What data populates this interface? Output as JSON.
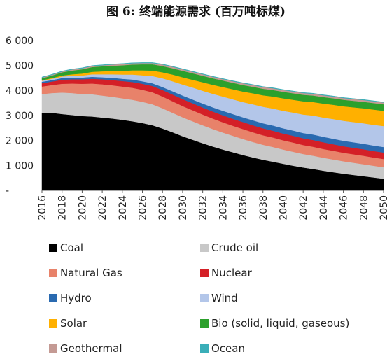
{
  "title": "图 6: 终端能源需求 (百万吨标煤)",
  "chart_data": {
    "type": "area",
    "stacked": true,
    "title": "图 6: 终端能源需求 (百万吨标煤)",
    "x": [
      2016,
      2017,
      2018,
      2019,
      2020,
      2021,
      2022,
      2023,
      2024,
      2025,
      2026,
      2027,
      2028,
      2029,
      2030,
      2031,
      2032,
      2033,
      2034,
      2035,
      2036,
      2037,
      2038,
      2039,
      2040,
      2041,
      2042,
      2043,
      2044,
      2045,
      2046,
      2047,
      2048,
      2049,
      2050
    ],
    "x_tick_labels": [
      "2016",
      "2018",
      "2020",
      "2022",
      "2024",
      "2026",
      "2028",
      "2030",
      "2032",
      "2034",
      "2036",
      "2038",
      "2040",
      "2042",
      "2044",
      "2046",
      "2048",
      "2050"
    ],
    "y_ticks": [
      {
        "value": 0,
        "label": "-"
      },
      {
        "value": 1000,
        "label": "1 000"
      },
      {
        "value": 2000,
        "label": "2 000"
      },
      {
        "value": 3000,
        "label": "3 000"
      },
      {
        "value": 4000,
        "label": "4 000"
      },
      {
        "value": 5000,
        "label": "5 000"
      },
      {
        "value": 6000,
        "label": "6 000"
      }
    ],
    "ylim": [
      0,
      6000
    ],
    "grid": false,
    "legend_position": "bottom",
    "series": [
      {
        "name": "Coal",
        "color": "#000000",
        "values": [
          3100,
          3110,
          3060,
          3020,
          2980,
          2960,
          2920,
          2880,
          2830,
          2770,
          2700,
          2610,
          2480,
          2330,
          2170,
          2030,
          1890,
          1760,
          1640,
          1530,
          1420,
          1320,
          1230,
          1150,
          1070,
          990,
          920,
          860,
          790,
          730,
          670,
          620,
          570,
          520,
          470
        ]
      },
      {
        "name": "Crude oil",
        "color": "#c8c8c8",
        "values": [
          760,
          790,
          860,
          880,
          880,
          890,
          880,
          870,
          860,
          860,
          850,
          840,
          810,
          780,
          760,
          740,
          720,
          700,
          680,
          660,
          640,
          620,
          600,
          590,
          570,
          560,
          540,
          530,
          520,
          510,
          500,
          490,
          480,
          470,
          460
        ]
      },
      {
        "name": "Natural Gas",
        "color": "#e8826a",
        "values": [
          300,
          320,
          350,
          380,
          410,
          430,
          450,
          460,
          470,
          480,
          480,
          480,
          470,
          460,
          450,
          440,
          430,
          420,
          410,
          400,
          400,
          390,
          380,
          380,
          370,
          370,
          360,
          360,
          350,
          350,
          340,
          340,
          340,
          330,
          330
        ]
      },
      {
        "name": "Nuclear",
        "color": "#d42027",
        "values": [
          130,
          140,
          160,
          170,
          180,
          190,
          200,
          210,
          220,
          230,
          240,
          250,
          260,
          270,
          280,
          280,
          280,
          280,
          280,
          280,
          280,
          280,
          280,
          270,
          270,
          270,
          270,
          270,
          270,
          260,
          260,
          260,
          260,
          260,
          260
        ]
      },
      {
        "name": "Hydro",
        "color": "#2a6ab0",
        "values": [
          60,
          60,
          70,
          70,
          70,
          80,
          80,
          90,
          90,
          100,
          100,
          110,
          120,
          130,
          140,
          150,
          160,
          170,
          180,
          190,
          190,
          200,
          200,
          210,
          210,
          210,
          210,
          220,
          220,
          220,
          220,
          220,
          220,
          220,
          220
        ]
      },
      {
        "name": "Wind",
        "color": "#b3c6e9",
        "values": [
          40,
          50,
          60,
          70,
          80,
          100,
          120,
          140,
          170,
          200,
          240,
          290,
          350,
          400,
          440,
          480,
          510,
          540,
          570,
          590,
          610,
          640,
          660,
          680,
          700,
          720,
          740,
          760,
          770,
          790,
          800,
          810,
          820,
          830,
          840
        ]
      },
      {
        "name": "Solar",
        "color": "#ffb000",
        "values": [
          20,
          30,
          40,
          60,
          80,
          100,
          120,
          130,
          150,
          170,
          200,
          220,
          240,
          270,
          290,
          310,
          340,
          360,
          380,
          400,
          420,
          440,
          460,
          480,
          500,
          510,
          530,
          540,
          560,
          570,
          580,
          590,
          600,
          610,
          610
        ]
      },
      {
        "name": "Bio (solid, liquid, gaseous)",
        "color": "#2ca02c",
        "values": [
          80,
          100,
          130,
          150,
          170,
          190,
          200,
          210,
          220,
          230,
          240,
          250,
          250,
          250,
          260,
          260,
          260,
          260,
          260,
          260,
          260,
          260,
          260,
          260,
          260,
          260,
          260,
          260,
          260,
          260,
          260,
          260,
          260,
          260,
          260
        ]
      },
      {
        "name": "Geothermal",
        "color": "#c49a94",
        "values": [
          30,
          30,
          30,
          40,
          40,
          40,
          40,
          50,
          50,
          50,
          50,
          50,
          60,
          60,
          60,
          60,
          60,
          60,
          60,
          60,
          70,
          70,
          70,
          70,
          70,
          70,
          70,
          70,
          70,
          70,
          70,
          70,
          70,
          70,
          70
        ]
      },
      {
        "name": "Ocean",
        "color": "#3aaeb8",
        "values": [
          20,
          20,
          20,
          20,
          20,
          20,
          20,
          20,
          20,
          20,
          20,
          20,
          20,
          20,
          20,
          20,
          20,
          20,
          20,
          20,
          20,
          20,
          20,
          20,
          20,
          20,
          20,
          20,
          20,
          20,
          20,
          20,
          20,
          20,
          20
        ]
      }
    ]
  }
}
